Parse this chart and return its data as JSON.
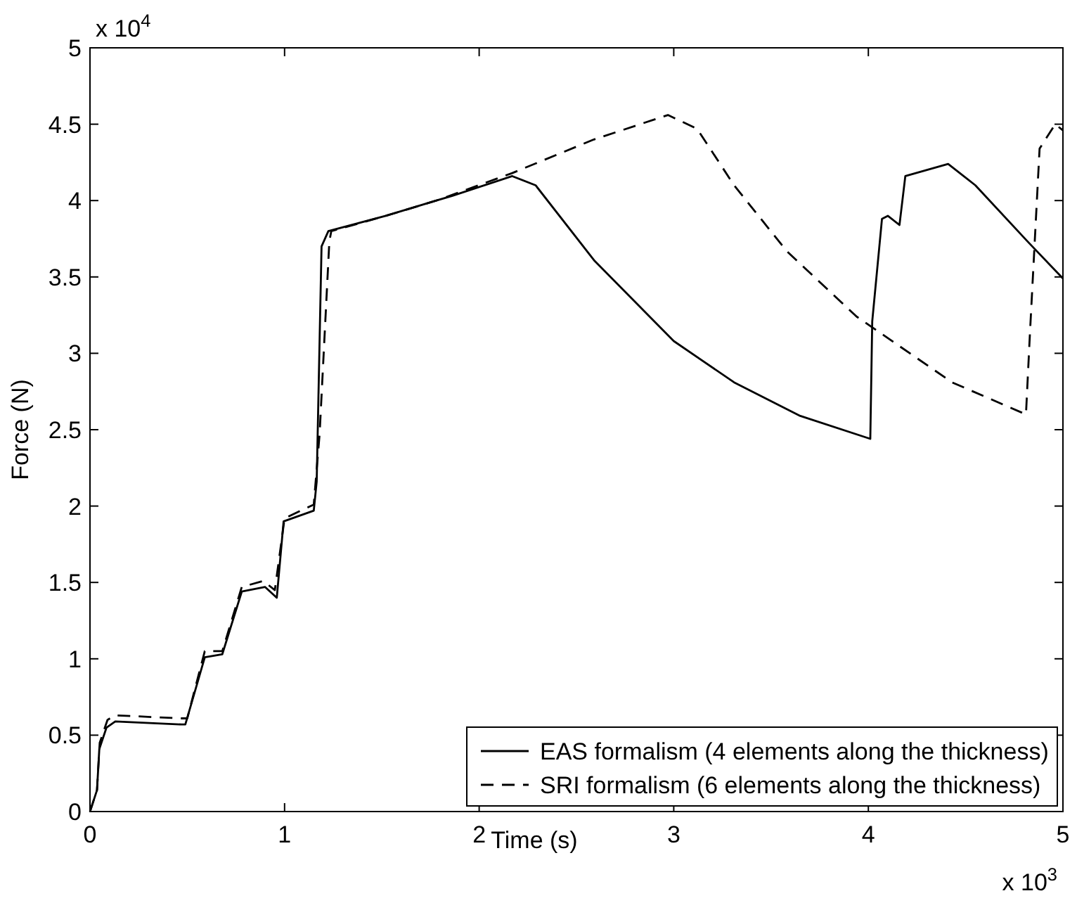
{
  "chart_data": {
    "type": "line",
    "xlabel": "Time (s)",
    "ylabel": "Force (N)",
    "xlim": [
      0,
      5
    ],
    "xticks": [
      0,
      1,
      2,
      3,
      4,
      5
    ],
    "ylim": [
      0,
      5
    ],
    "yticks": [
      0,
      0.5,
      1,
      1.5,
      2,
      2.5,
      3,
      3.5,
      4,
      4.5,
      5
    ],
    "grid": false,
    "legend": "bottom right",
    "annotations": [
      "x 10$^{4}$",
      "x 10$^{3}$"
    ],
    "series": [
      {
        "name": "EAS formalism (4 elements along the thickness)",
        "color": "#000000",
        "line_style": "solid",
        "x": [
          0,
          0.036,
          0.048,
          0.085,
          0.13,
          0.47,
          0.49,
          0.59,
          0.68,
          0.78,
          0.9,
          0.96,
          0.995,
          1.15,
          1.165,
          1.19,
          1.225,
          1.52,
          1.78,
          1.86,
          2.17,
          2.29,
          2.59,
          3.0,
          3.31,
          3.65,
          4.01,
          4.02,
          4.07,
          4.1,
          4.16,
          4.19,
          4.41,
          4.55,
          4.82,
          5.0
        ],
        "values": [
          0,
          0.14,
          0.41,
          0.55,
          0.59,
          0.57,
          0.57,
          1.01,
          1.03,
          1.44,
          1.47,
          1.4,
          1.9,
          1.97,
          2.16,
          3.7,
          3.8,
          3.9,
          4.0,
          4.03,
          4.16,
          4.1,
          3.61,
          3.08,
          2.81,
          2.59,
          2.44,
          3.21,
          3.88,
          3.9,
          3.84,
          4.16,
          4.24,
          4.1,
          3.73,
          3.49
        ]
      },
      {
        "name": "SRI formalism (6 elements along the thickness)",
        "color": "#000000",
        "line_style": "dashed",
        "x": [
          0,
          0.036,
          0.05,
          0.09,
          0.13,
          0.47,
          0.5,
          0.59,
          0.68,
          0.78,
          0.89,
          0.95,
          1.0,
          1.15,
          1.18,
          1.23,
          1.24,
          1.52,
          1.78,
          2.17,
          2.59,
          2.97,
          3.12,
          3.31,
          3.58,
          3.94,
          4.43,
          4.81,
          4.83,
          4.88,
          4.96,
          5.0
        ],
        "values": [
          0,
          0.14,
          0.45,
          0.6,
          0.63,
          0.61,
          0.61,
          1.05,
          1.05,
          1.47,
          1.51,
          1.45,
          1.92,
          2.01,
          2.47,
          3.73,
          3.8,
          3.9,
          4.0,
          4.18,
          4.4,
          4.56,
          4.47,
          4.1,
          3.67,
          3.24,
          2.81,
          2.6,
          3.12,
          4.34,
          4.5,
          4.46
        ]
      }
    ]
  }
}
